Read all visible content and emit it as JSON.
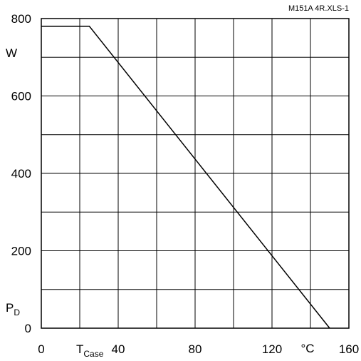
{
  "chart_data": {
    "type": "line",
    "file_tag": "M151A 4R.XLS-1",
    "ylabel_unit": "W",
    "ylabel_symbol": "P",
    "ylabel_subscript": "D",
    "xlabel_symbol": "T",
    "xlabel_subscript": "Case",
    "xlabel_unit": "°C",
    "xlim": [
      0,
      160
    ],
    "ylim": [
      0,
      800
    ],
    "x_tick_labels": [
      "0",
      "40",
      "80",
      "120",
      "160"
    ],
    "y_tick_labels": [
      "0",
      "200",
      "400",
      "600",
      "800"
    ],
    "grid": true,
    "series": [
      {
        "x": [
          0,
          25,
          150
        ],
        "y": [
          780,
          780,
          0
        ]
      }
    ]
  }
}
